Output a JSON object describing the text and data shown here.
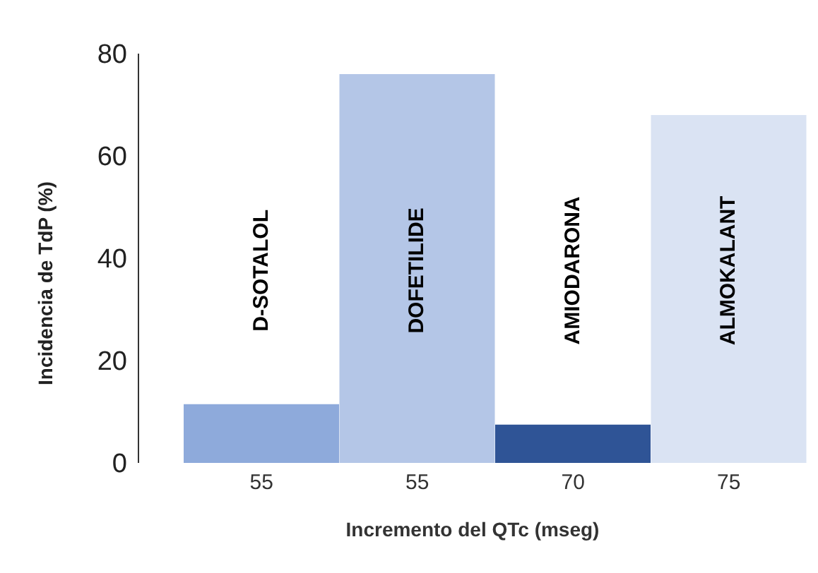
{
  "chart_data": {
    "type": "bar",
    "xlabel": "Incremento del QTc (mseg)",
    "ylabel": "Incidencia de TdP (%)",
    "categories": [
      "55",
      "55",
      "70",
      "75"
    ],
    "values": [
      11.5,
      76,
      7.5,
      68
    ],
    "colors": [
      "#8eaadb",
      "#b4c6e7",
      "#2f5496",
      "#dae3f3"
    ],
    "ylim": [
      0,
      80
    ],
    "yticks": [
      0,
      20,
      40,
      60,
      80
    ],
    "grid": false,
    "legend": false,
    "annotations": [
      "D-SOTALOL",
      "DOFETILIDE",
      "AMIODARONA",
      "ALMOKALANT"
    ]
  }
}
